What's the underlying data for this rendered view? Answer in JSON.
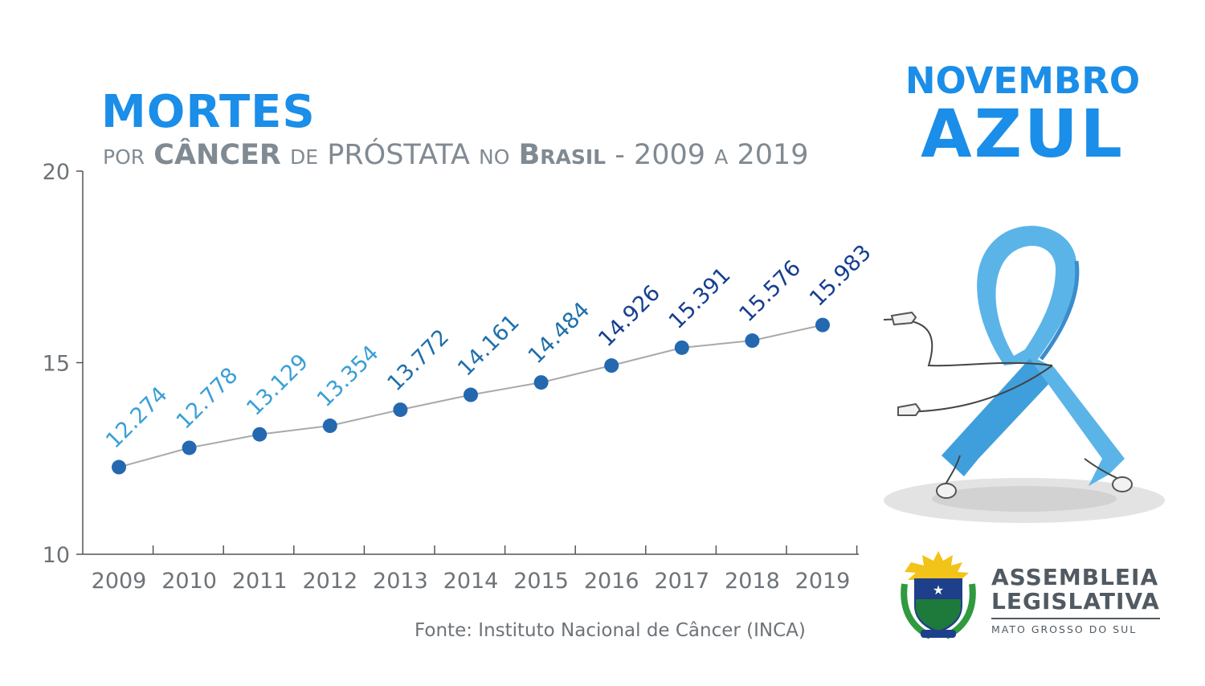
{
  "header": {
    "title": "MORTES",
    "subtitle_parts": [
      "POR",
      "CÂNCER",
      "DE",
      "PRÓSTATA",
      "NO",
      "B",
      "RASIL",
      "- 2009",
      "A",
      "2019"
    ]
  },
  "campaign": {
    "line1": "NOVEMBRO",
    "line2": "AZUL"
  },
  "source": "Fonte: Instituto Nacional de Câncer (INCA)",
  "organization": {
    "line1": "ASSEMBLEIA",
    "line2": "LEGISLATIVA",
    "line3": "MATO GROSSO DO SUL"
  },
  "icons": {
    "ribbon": "blue-ribbon-mascot-icon",
    "emblem": "coat-of-arms-icon"
  },
  "colors": {
    "accent": "#1a8ee8",
    "line": "#a9a9a9",
    "point": "#2468b0",
    "label_light": "#3a9fd6",
    "label_mid": "#1f6fab",
    "label_dark": "#163f8f",
    "ribbon": "#5ab4e8"
  },
  "chart_data": {
    "type": "line",
    "title": "MORTES",
    "subtitle": "POR CÂNCER DE PRÓSTATA NO BRASIL - 2009 A 2019",
    "categories": [
      "2009",
      "2010",
      "2011",
      "2012",
      "2013",
      "2014",
      "2015",
      "2016",
      "2017",
      "2018",
      "2019"
    ],
    "values": [
      12.274,
      12.778,
      13.129,
      13.354,
      13.772,
      14.161,
      14.484,
      14.926,
      15.391,
      15.576,
      15.983
    ],
    "value_labels": [
      "12.274",
      "12.778",
      "13.129",
      "13.354",
      "13.772",
      "14.161",
      "14.484",
      "14.926",
      "15.391",
      "15.576",
      "15.983"
    ],
    "ylim": [
      10,
      20
    ],
    "yticks": [
      10,
      15,
      20
    ],
    "xlabel": "",
    "ylabel": "",
    "grid": false,
    "legend": "none"
  }
}
